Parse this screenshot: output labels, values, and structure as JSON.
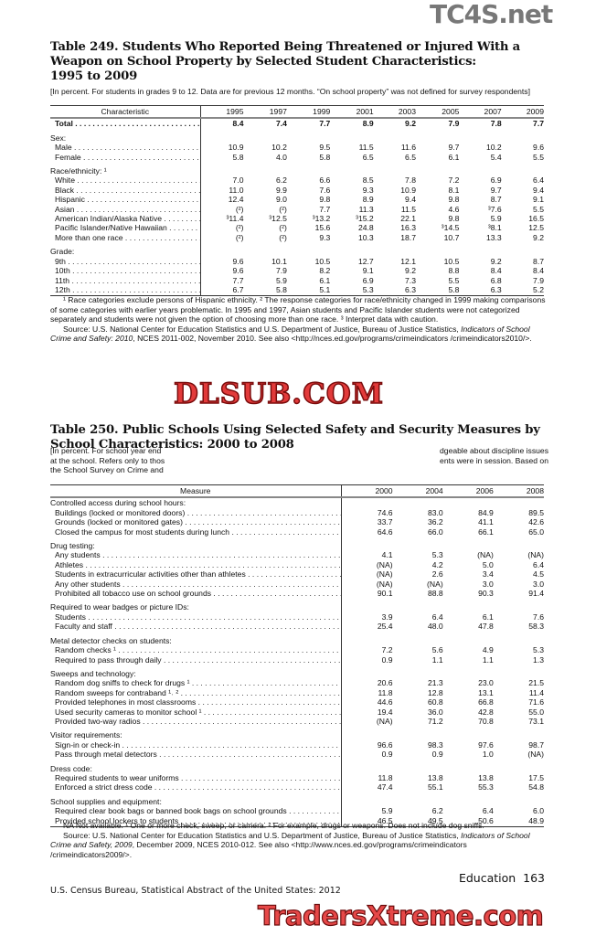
{
  "watermarks": {
    "top": "TC4S.net",
    "middle": "DLSUB.COM",
    "bottom": "TradersXtreme.com"
  },
  "table249": {
    "title_lines": [
      "Table 249. Students Who Reported Being Threatened or Injured With a",
      "Weapon on School Property by Selected Student Characteristics:",
      "1995 to 2009"
    ],
    "intro": "[In percent. For students in grades 9 to 12. Data are for previous 12 months. “On school property” was not defined for survey respondents]",
    "header": [
      "Characteristic",
      "1995",
      "1997",
      "1999",
      "2001",
      "2003",
      "2005",
      "2007",
      "2009"
    ],
    "rows": [
      {
        "label": "Total",
        "bold": true,
        "values": [
          "8.4",
          "7.4",
          "7.7",
          "8.9",
          "9.2",
          "7.9",
          "7.8",
          "7.7"
        ]
      },
      {
        "gap": true
      },
      {
        "label": "Sex:",
        "heading": true
      },
      {
        "label": "Male",
        "values": [
          "10.9",
          "10.2",
          "9.5",
          "11.5",
          "11.6",
          "9.7",
          "10.2",
          "9.6"
        ]
      },
      {
        "label": "Female",
        "values": [
          "5.8",
          "4.0",
          "5.8",
          "6.5",
          "6.5",
          "6.1",
          "5.4",
          "5.5"
        ]
      },
      {
        "gap": true
      },
      {
        "label": "Race/ethnicity: ¹",
        "heading": true
      },
      {
        "label": "White",
        "values": [
          "7.0",
          "6.2",
          "6.6",
          "8.5",
          "7.8",
          "7.2",
          "6.9",
          "6.4"
        ]
      },
      {
        "label": "Black",
        "values": [
          "11.0",
          "9.9",
          "7.6",
          "9.3",
          "10.9",
          "8.1",
          "9.7",
          "9.4"
        ]
      },
      {
        "label": "Hispanic",
        "values": [
          "12.4",
          "9.0",
          "9.8",
          "8.9",
          "9.4",
          "9.8",
          "8.7",
          "9.1"
        ]
      },
      {
        "label": "Asian",
        "values": [
          "(²)",
          "(²)",
          "7.7",
          "11.3",
          "11.5",
          "4.6",
          "³7.6",
          "5.5"
        ]
      },
      {
        "label": "American Indian/Alaska Native",
        "values": [
          "³11.4",
          "³12.5",
          "³13.2",
          "³15.2",
          "22.1",
          "9.8",
          "5.9",
          "16.5"
        ]
      },
      {
        "label": "Pacific Islander/Native Hawaiian",
        "values": [
          "(²)",
          "(²)",
          "15.6",
          "24.8",
          "16.3",
          "³14.5",
          "³8.1",
          "12.5"
        ]
      },
      {
        "label": "More than one race",
        "values": [
          "(²)",
          "(²)",
          "9.3",
          "10.3",
          "18.7",
          "10.7",
          "13.3",
          "9.2"
        ]
      },
      {
        "gap": true
      },
      {
        "label": "Grade:",
        "heading": true
      },
      {
        "label": "9th",
        "values": [
          "9.6",
          "10.1",
          "10.5",
          "12.7",
          "12.1",
          "10.5",
          "9.2",
          "8.7"
        ]
      },
      {
        "label": "10th",
        "values": [
          "9.6",
          "7.9",
          "8.2",
          "9.1",
          "9.2",
          "8.8",
          "8.4",
          "8.4"
        ]
      },
      {
        "label": "11th",
        "values": [
          "7.7",
          "5.9",
          "6.1",
          "6.9",
          "7.3",
          "5.5",
          "6.8",
          "7.9"
        ]
      },
      {
        "label": "12th",
        "values": [
          "6.7",
          "5.8",
          "5.1",
          "5.3",
          "6.3",
          "5.8",
          "6.3",
          "5.2"
        ]
      }
    ],
    "footnote": "¹ Race categories exclude persons of Hispanic ethnicity. ² The response categories for race/ethnicity changed in 1999 making comparisons of some categories with earlier years problematic. In 1995 and 1997, Asian students and Pacific Islander students were not categorized separately and students were not given the option of choosing more than one race. ³ Interpret data with caution.",
    "source_pre": "Source: U.S. National Center for Education Statistics and U.S. Department of Justice, Bureau of Justice Statistics, ",
    "source_italic": "Indicators of School Crime and Safety: 2010",
    "source_post": ", NCES 2011-002, November 2010. See also <http://nces.ed.gov/programs/crimeindicators /crimeindicators2010/>."
  },
  "table250": {
    "title_lines": [
      "Table 250. Public Schools Using Selected Safety and Security Measures by",
      "School Characteristics: 2000 to 2008"
    ],
    "intro_lines": [
      "[In percent. For school year end",
      "dgeable about discipline issues",
      "at the school. Refers only to thos",
      "ents were in session. Based on",
      "the School Survey on Crime and"
    ],
    "header": [
      "Measure",
      "2000",
      "2004",
      "2006",
      "2008"
    ],
    "rows": [
      {
        "label": "Controlled access during school hours:",
        "heading": true
      },
      {
        "label": "Buildings (locked or monitored doors)",
        "values": [
          "74.6",
          "83.0",
          "84.9",
          "89.5"
        ]
      },
      {
        "label": "Grounds (locked or monitored gates)",
        "values": [
          "33.7",
          "36.2",
          "41.1",
          "42.6"
        ]
      },
      {
        "label": "Closed the campus for most students during lunch",
        "values": [
          "64.6",
          "66.0",
          "66.1",
          "65.0"
        ]
      },
      {
        "gap": true
      },
      {
        "label": "Drug testing:",
        "heading": true
      },
      {
        "label": "Any students",
        "values": [
          "4.1",
          "5.3",
          "(NA)",
          "(NA)"
        ]
      },
      {
        "label": "Athletes",
        "values": [
          "(NA)",
          "4.2",
          "5.0",
          "6.4"
        ]
      },
      {
        "label": "Students in extracurricular activities other than athletes",
        "values": [
          "(NA)",
          "2.6",
          "3.4",
          "4.5"
        ]
      },
      {
        "label": "Any other students",
        "values": [
          "(NA)",
          "(NA)",
          "3.0",
          "3.0"
        ]
      },
      {
        "label": "Prohibited all tobacco use on school grounds",
        "values": [
          "90.1",
          "88.8",
          "90.3",
          "91.4"
        ]
      },
      {
        "gap": true
      },
      {
        "label": "Required to wear badges or picture IDs:",
        "heading": true
      },
      {
        "label": "Students",
        "values": [
          "3.9",
          "6.4",
          "6.1",
          "7.6"
        ]
      },
      {
        "label": "Faculty and staff",
        "values": [
          "25.4",
          "48.0",
          "47.8",
          "58.3"
        ]
      },
      {
        "gap": true
      },
      {
        "label": "Metal detector checks on students:",
        "heading": true
      },
      {
        "label": "Random checks ¹",
        "values": [
          "7.2",
          "5.6",
          "4.9",
          "5.3"
        ]
      },
      {
        "label": "Required to pass through daily",
        "values": [
          "0.9",
          "1.1",
          "1.1",
          "1.3"
        ]
      },
      {
        "gap": true
      },
      {
        "label": "Sweeps and technology:",
        "heading": true
      },
      {
        "label": "Random dog sniffs to check for drugs ¹",
        "values": [
          "20.6",
          "21.3",
          "23.0",
          "21.5"
        ]
      },
      {
        "label": "Random sweeps for contraband ¹˒ ²",
        "values": [
          "11.8",
          "12.8",
          "13.1",
          "11.4"
        ]
      },
      {
        "label": "Provided telephones in most classrooms",
        "values": [
          "44.6",
          "60.8",
          "66.8",
          "71.6"
        ]
      },
      {
        "label": "Used security cameras to monitor school ¹",
        "values": [
          "19.4",
          "36.0",
          "42.8",
          "55.0"
        ]
      },
      {
        "label": "Provided two-way radios",
        "values": [
          "(NA)",
          "71.2",
          "70.8",
          "73.1"
        ]
      },
      {
        "gap": true
      },
      {
        "label": "Visitor requirements:",
        "heading": true
      },
      {
        "label": "Sign-in or check-in",
        "values": [
          "96.6",
          "98.3",
          "97.6",
          "98.7"
        ]
      },
      {
        "label": "Pass through metal detectors",
        "values": [
          "0.9",
          "0.9",
          "1.0",
          "(NA)"
        ]
      },
      {
        "gap": true
      },
      {
        "label": "Dress code:",
        "heading": true
      },
      {
        "label": "Required students to wear uniforms",
        "values": [
          "11.8",
          "13.8",
          "13.8",
          "17.5"
        ]
      },
      {
        "label": "Enforced a strict dress code",
        "values": [
          "47.4",
          "55.1",
          "55.3",
          "54.8"
        ]
      },
      {
        "gap": true
      },
      {
        "label": "School supplies and equipment:",
        "heading": true
      },
      {
        "label": "Required clear book bags or banned book bags on school grounds",
        "values": [
          "5.9",
          "6.2",
          "6.4",
          "6.0"
        ]
      },
      {
        "label": "Provided school lockers to students",
        "values": [
          "46.5",
          "49.5",
          "50.6",
          "48.9"
        ]
      }
    ],
    "footnote": "NA Not available. ¹ One or more check, sweep, or camera. ² For example, drugs or weapons. Does not include dog sniffs.",
    "source_pre": "Source: U.S. National Center for Education Statistics and U.S. Department of Justice, Bureau of Justice Statistics, ",
    "source_italic": "Indicators of School Crime and Safety, 2009",
    "source_post": ", December 2009, NCES 2010-012. See also <http://www.nces.ed.gov/programs/crimeindicators /crimeindicators2009/>."
  },
  "footer": {
    "section": "Education  163",
    "publication": "U.S. Census Bureau, Statistical Abstract of the United States: 2012"
  }
}
